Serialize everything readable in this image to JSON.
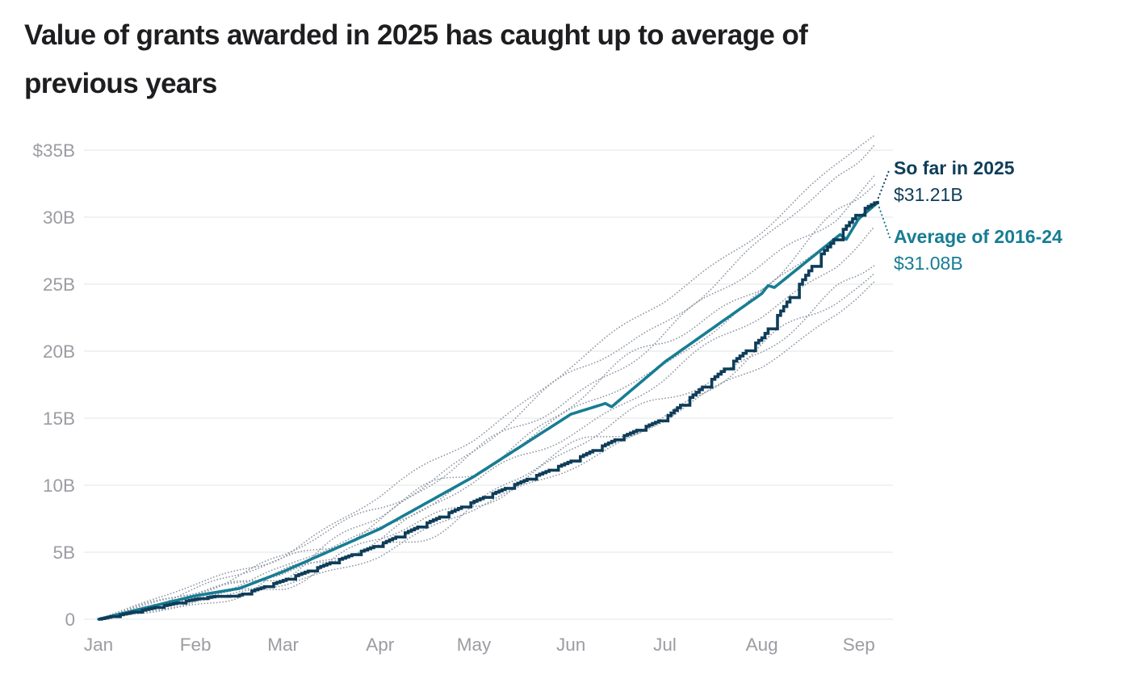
{
  "title_line1": "Value of grants awarded in 2025 has caught up to average of",
  "title_line2": "previous years",
  "annotations": {
    "current_label": "So far in 2025",
    "current_value": "$31.21B",
    "average_label": "Average of 2016-24",
    "average_value": "$31.08B"
  },
  "colors": {
    "current": "#0e3d59",
    "average": "#177d93",
    "years_dotted": "#9097a4",
    "grid": "#e8e9eb",
    "axis_text": "#9c9ca2",
    "title_text": "#1e1e21"
  },
  "chart_data": {
    "type": "line",
    "title": "Value of grants awarded in 2025 has caught up to average of previous years",
    "unit": "cumulative value of grants awarded, USD billions",
    "x_tick_labels": [
      "Jan",
      "Feb",
      "Mar",
      "Apr",
      "May",
      "Jun",
      "Jul",
      "Aug",
      "Sep"
    ],
    "x_tick_days": [
      0,
      31,
      59,
      90,
      120,
      151,
      181,
      212,
      243
    ],
    "x_domain_days": [
      0,
      249
    ],
    "y_tick_labels": [
      "$35B",
      "30B",
      "25B",
      "20B",
      "15B",
      "10B",
      "5B",
      "0"
    ],
    "y_tick_values": [
      35,
      30,
      25,
      20,
      15,
      10,
      5,
      0
    ],
    "y_domain": [
      0,
      35
    ],
    "grid": "horizontal-only",
    "legend_position": "right-annotations",
    "series": [
      {
        "name": "So far in 2025",
        "role": "current",
        "style": "solid-step",
        "color_key": "current",
        "end_label": "$31.21B",
        "end_value": 31.21,
        "days": [
          0,
          31,
          37,
          44,
          59,
          90,
          120,
          151,
          166,
          181,
          212,
          230,
          243,
          249
        ],
        "values": [
          0,
          1.5,
          1.7,
          1.72,
          2.9,
          5.6,
          8.8,
          11.8,
          13.5,
          15.0,
          21.0,
          27.0,
          30.4,
          31.21
        ]
      },
      {
        "name": "Average of 2016-24",
        "role": "average",
        "style": "solid",
        "color_key": "average",
        "end_label": "$31.08B",
        "end_value": 31.08,
        "days": [
          0,
          31,
          45,
          59,
          90,
          120,
          151,
          162,
          164,
          181,
          212,
          214,
          216,
          237,
          239,
          243,
          249
        ],
        "values": [
          0,
          1.75,
          2.3,
          3.55,
          6.75,
          10.65,
          15.3,
          16.1,
          15.85,
          19.2,
          24.3,
          24.9,
          24.75,
          28.7,
          28.35,
          29.9,
          31.08
        ]
      },
      {
        "name": "Previous year 1 (of 2016-24)",
        "role": "individual_year",
        "style": "dotted",
        "color_key": "years_dotted",
        "end_value": 36.1,
        "days": [
          0,
          31,
          59,
          90,
          120,
          151,
          181,
          212,
          243,
          248
        ],
        "values": [
          0,
          2.5,
          5.0,
          9.0,
          13.6,
          19.0,
          23.6,
          29.3,
          35.2,
          36.1
        ]
      },
      {
        "name": "Previous year 2 (of 2016-24)",
        "role": "individual_year",
        "style": "dotted",
        "color_key": "years_dotted",
        "end_value": 35.4,
        "days": [
          0,
          31,
          59,
          90,
          120,
          151,
          181,
          212,
          243,
          248
        ],
        "values": [
          0,
          2.2,
          4.5,
          8.3,
          12.7,
          18.0,
          22.4,
          28.0,
          34.0,
          35.4
        ]
      },
      {
        "name": "Previous year 3 (of 2016-24)",
        "role": "individual_year",
        "style": "dotted",
        "color_key": "years_dotted",
        "end_value": 33.1,
        "days": [
          0,
          31,
          59,
          90,
          120,
          151,
          181,
          212,
          243,
          248
        ],
        "values": [
          0,
          2.0,
          4.2,
          7.7,
          11.9,
          16.9,
          21.2,
          26.3,
          31.9,
          33.1
        ]
      },
      {
        "name": "Previous year 4 (of 2016-24)",
        "role": "individual_year",
        "style": "dotted",
        "color_key": "years_dotted",
        "end_value": 32.4,
        "days": [
          0,
          31,
          59,
          90,
          120,
          151,
          181,
          212,
          243,
          248
        ],
        "values": [
          0,
          1.9,
          3.9,
          7.3,
          11.4,
          16.2,
          20.4,
          25.5,
          31.2,
          32.4
        ]
      },
      {
        "name": "Previous year 5 (of 2016-24)",
        "role": "individual_year",
        "style": "dotted",
        "color_key": "years_dotted",
        "end_value": 30.9,
        "days": [
          0,
          31,
          59,
          90,
          120,
          151,
          181,
          212,
          243,
          248
        ],
        "values": [
          0,
          1.7,
          3.6,
          6.8,
          10.7,
          15.3,
          19.2,
          24.2,
          29.7,
          30.9
        ]
      },
      {
        "name": "Previous year 6 (of 2016-24)",
        "role": "individual_year",
        "style": "dotted",
        "color_key": "years_dotted",
        "end_value": 29.3,
        "days": [
          0,
          31,
          59,
          90,
          120,
          151,
          181,
          212,
          243,
          248
        ],
        "values": [
          0,
          1.6,
          3.3,
          6.3,
          9.9,
          14.2,
          17.9,
          22.6,
          28.1,
          29.3
        ]
      },
      {
        "name": "Previous year 7 (of 2016-24)",
        "role": "individual_year",
        "style": "dotted",
        "color_key": "years_dotted",
        "end_value": 26.4,
        "days": [
          0,
          31,
          59,
          90,
          120,
          151,
          181,
          212,
          243,
          248
        ],
        "values": [
          0,
          1.4,
          2.9,
          5.6,
          8.8,
          12.7,
          16.1,
          20.4,
          25.4,
          26.4
        ]
      },
      {
        "name": "Previous year 8 (of 2016-24)",
        "role": "individual_year",
        "style": "dotted",
        "color_key": "years_dotted",
        "end_value": 25.8,
        "days": [
          0,
          31,
          59,
          90,
          120,
          151,
          181,
          212,
          243,
          248
        ],
        "values": [
          0,
          1.3,
          2.8,
          5.4,
          8.5,
          12.3,
          15.6,
          19.8,
          24.8,
          25.8
        ]
      },
      {
        "name": "Previous year 9 (of 2016-24)",
        "role": "individual_year",
        "style": "dotted",
        "color_key": "years_dotted",
        "end_value": 25.2,
        "days": [
          0,
          31,
          59,
          90,
          120,
          151,
          181,
          212,
          243,
          248
        ],
        "values": [
          0,
          1.2,
          2.6,
          5.0,
          8.0,
          11.6,
          14.8,
          18.9,
          24.2,
          25.2
        ]
      }
    ]
  }
}
